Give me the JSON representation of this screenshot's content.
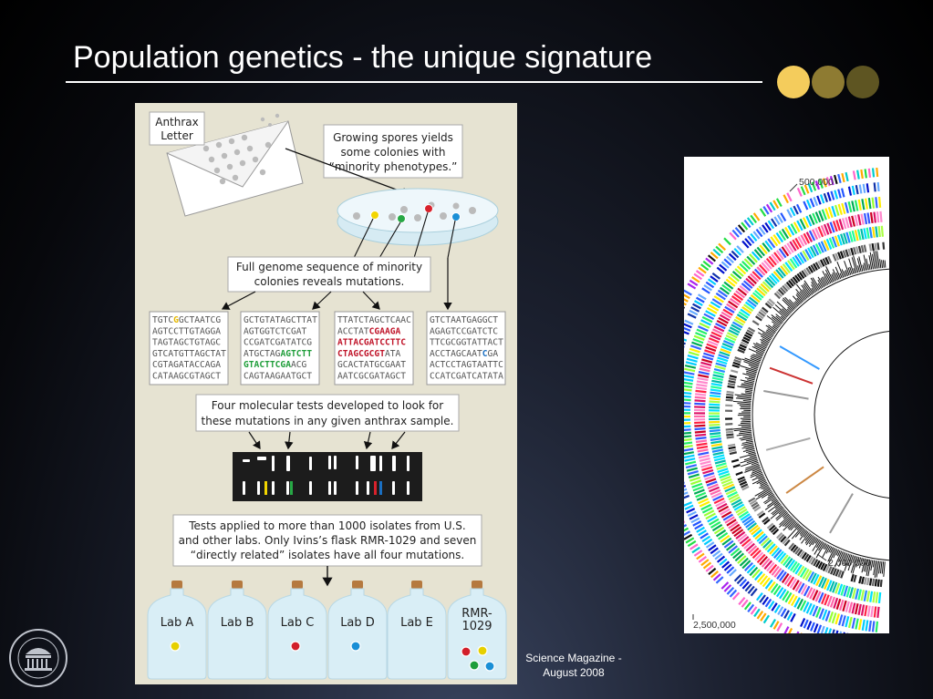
{
  "slide": {
    "title": "Population genetics - the unique signature",
    "credit_line1": "Science Magazine -",
    "credit_line2": "August 2008",
    "dot_colors": [
      "#f4cc5c",
      "#8e7b32",
      "#5e5522"
    ]
  },
  "diagram": {
    "envelope_label_line1": "Anthrax",
    "envelope_label_line2": "Letter",
    "callout_spores": [
      "Growing spores yields",
      "some colonies with",
      "“minority phenotypes.”"
    ],
    "callout_genome": [
      "Full genome sequence of minority",
      "colonies reveals mutations."
    ],
    "callout_tests": [
      "Four molecular tests developed to look for",
      "these mutations in any given anthrax sample."
    ],
    "callout_isolates": [
      "Tests applied to more than 1000 isolates from U.S.",
      "and other labs. Only Ivins’s flask RMR-1029 and seven",
      "“directly related” isolates have all four mutations."
    ],
    "sequences": [
      {
        "lines": [
          [
            {
              "t": "TGTC"
            },
            {
              "t": "G",
              "c": "#e6b800"
            },
            {
              "t": "GCTAATCG"
            }
          ],
          [
            {
              "t": "AGTCCTTGTAGGA"
            }
          ],
          [
            {
              "t": "TAGTAGCTGTAGC"
            }
          ],
          [
            {
              "t": "GTCATGTTAGCTAT"
            }
          ],
          [
            {
              "t": "CGTAGATACCAGA"
            }
          ],
          [
            {
              "t": "CATAAGCGTAGCT"
            }
          ]
        ]
      },
      {
        "lines": [
          [
            {
              "t": "GCTGTATAGCTTAT"
            }
          ],
          [
            {
              "t": "AGTGGTCTCGAT"
            }
          ],
          [
            {
              "t": "CCGATCGATATCG"
            }
          ],
          [
            {
              "t": "ATGCTAG"
            },
            {
              "t": "AGTCTT",
              "c": "#1f9e3a"
            }
          ],
          [
            {
              "t": "GTACTTCGA",
              "c": "#1f9e3a"
            },
            {
              "t": "ACG"
            }
          ],
          [
            {
              "t": "CAGTAAGAATGCT"
            }
          ]
        ]
      },
      {
        "lines": [
          [
            {
              "t": "TTATCTAGCTCAAC"
            }
          ],
          [
            {
              "t": "ACCTAT"
            },
            {
              "t": "CGAAGA",
              "c": "#c0152a"
            }
          ],
          [
            {
              "t": "ATTACGATCCTTC",
              "c": "#c0152a"
            }
          ],
          [
            {
              "t": "CTAGCGCGT",
              "c": "#c0152a"
            },
            {
              "t": "ATA"
            }
          ],
          [
            {
              "t": "GCACTATGCGAAT"
            }
          ],
          [
            {
              "t": "AATCGCGATAGCT"
            }
          ]
        ]
      },
      {
        "lines": [
          [
            {
              "t": "GTCTAATGAGGCT"
            }
          ],
          [
            {
              "t": "AGAGTCCGATCTC"
            }
          ],
          [
            {
              "t": "TTCGCGGTATTACT"
            }
          ],
          [
            {
              "t": "ACCTAGCAAT"
            },
            {
              "t": "C",
              "c": "#1b6fc2"
            },
            {
              "t": "GA"
            }
          ],
          [
            {
              "t": "ACTCCTAGTAATTC"
            }
          ],
          [
            {
              "t": "CCATCGATCATATA"
            }
          ]
        ]
      }
    ],
    "bottles": [
      {
        "label": "Lab A",
        "dots": [
          "#e6d000"
        ]
      },
      {
        "label": "Lab B",
        "dots": []
      },
      {
        "label": "Lab C",
        "dots": [
          "#d21f2a"
        ]
      },
      {
        "label": "Lab D",
        "dots": [
          "#1a8fd6"
        ]
      },
      {
        "label": "Lab E",
        "dots": []
      },
      {
        "label": "RMR-\n1029",
        "dots": [
          "#d21f2a",
          "#e6d000",
          "#1f9e3a",
          "#1a8fd6"
        ]
      }
    ]
  },
  "genome_map": {
    "label_top": "500,000",
    "label_mid": "2,000,000",
    "label_bottom": "2,500,000"
  }
}
